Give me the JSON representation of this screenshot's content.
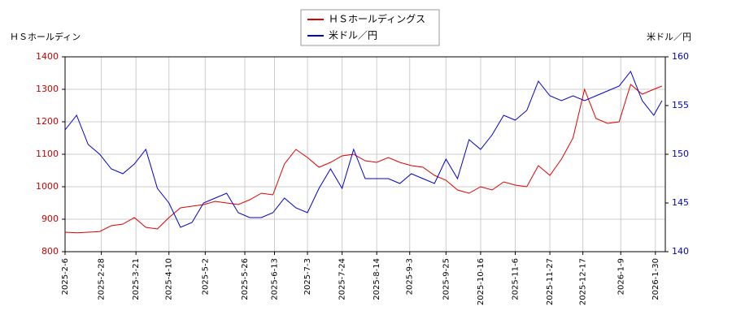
{
  "chart_data": {
    "type": "line",
    "y_label": "ＨＳホールディン",
    "y2_label": "米ドル／円",
    "x": [
      "2025-2-6",
      "2025-2-13",
      "2025-2-20",
      "2025-2-27",
      "2025-3-6",
      "2025-3-13",
      "2025-3-20",
      "2025-3-27",
      "2025-4-3",
      "2025-4-10",
      "2025-4-17",
      "2025-4-24",
      "2025-5-1",
      "2025-5-8",
      "2025-5-15",
      "2025-5-22",
      "2025-5-29",
      "2025-6-5",
      "2025-6-12",
      "2025-6-19",
      "2025-6-26",
      "2025-7-3",
      "2025-7-10",
      "2025-7-17",
      "2025-7-24",
      "2025-7-31",
      "2025-8-7",
      "2025-8-14",
      "2025-8-21",
      "2025-8-28",
      "2025-9-4",
      "2025-9-11",
      "2025-9-18",
      "2025-9-25",
      "2025-10-2",
      "2025-10-9",
      "2025-10-16",
      "2025-10-23",
      "2025-10-30",
      "2025-11-6",
      "2025-11-13",
      "2025-11-20",
      "2025-11-27",
      "2025-12-4",
      "2025-12-11",
      "2025-12-18",
      "2025-12-25",
      "2026-1-1",
      "2026-1-8",
      "2026-1-15",
      "2026-1-22",
      "2026-1-29",
      "2026-2-3"
    ],
    "series": [
      {
        "name": "ＨＳホールディングス",
        "color": "#dd0000",
        "axis": "y",
        "values": [
          860,
          858,
          860,
          862,
          880,
          885,
          905,
          875,
          870,
          905,
          935,
          940,
          945,
          955,
          950,
          945,
          960,
          980,
          975,
          1070,
          1115,
          1090,
          1060,
          1075,
          1095,
          1100,
          1080,
          1075,
          1090,
          1075,
          1065,
          1060,
          1035,
          1020,
          990,
          980,
          1000,
          990,
          1015,
          1005,
          1000,
          1065,
          1035,
          1085,
          1150,
          1300,
          1210,
          1195,
          1200,
          1315,
          1285,
          1300,
          1310
        ]
      },
      {
        "name": "米ドル／円",
        "color": "#0000cc",
        "axis": "y2",
        "values": [
          152.5,
          154,
          151,
          150,
          148.5,
          148,
          149,
          150.5,
          146.5,
          145,
          142.5,
          143,
          145,
          145.5,
          146,
          144,
          143.5,
          143.5,
          144,
          145.5,
          144.5,
          144,
          146.5,
          148.5,
          146.5,
          150.5,
          147.5,
          147.5,
          147.5,
          147,
          148,
          147.5,
          147,
          149.5,
          147.5,
          151.5,
          150.5,
          152,
          154,
          153.5,
          154.5,
          157.5,
          156,
          155.5,
          156,
          155.5,
          156,
          156.5,
          157,
          158.5,
          155.5,
          154,
          155.5
        ]
      }
    ],
    "xlim": [
      "2025-2-6",
      "2026-2-5"
    ],
    "xticks": [
      "2025-2-6",
      "2025-2-28",
      "2025-3-21",
      "2025-4-10",
      "2025-5-2",
      "2025-5-26",
      "2025-6-13",
      "2025-7-3",
      "2025-7-24",
      "2025-8-14",
      "2025-9-3",
      "2025-9-25",
      "2025-10-16",
      "2025-11-6",
      "2025-11-27",
      "2025-12-17",
      "2026-1-9",
      "2026-1-30"
    ],
    "ylim": [
      800,
      1400
    ],
    "yticks": [
      800,
      900,
      1000,
      1100,
      1200,
      1300,
      1400
    ],
    "y2lim": [
      140,
      160
    ],
    "y2ticks": [
      140,
      145,
      150,
      155,
      160
    ],
    "grid": true
  }
}
